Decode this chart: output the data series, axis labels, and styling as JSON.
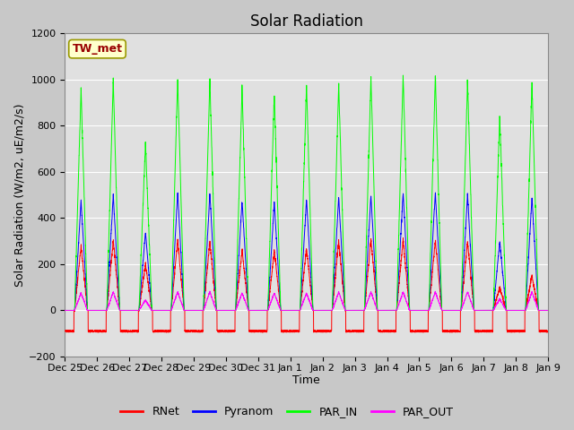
{
  "title": "Solar Radiation",
  "ylabel": "Solar Radiation (W/m2, uE/m2/s)",
  "xlabel": "Time",
  "ylim": [
    -200,
    1200
  ],
  "yticks": [
    -200,
    0,
    200,
    400,
    600,
    800,
    1000,
    1200
  ],
  "fig_bg_color": "#c8c8c8",
  "plot_bg_color": "#e0e0e0",
  "grid_color": "white",
  "station_label": "TW_met",
  "station_label_color": "#990000",
  "station_box_facecolor": "#ffffcc",
  "station_box_edgecolor": "#999900",
  "legend_labels": [
    "RNet",
    "Pyranom",
    "PAR_IN",
    "PAR_OUT"
  ],
  "line_colors": [
    "red",
    "blue",
    "lime",
    "magenta"
  ],
  "n_days": 15,
  "x_tick_labels": [
    "Dec 25",
    "Dec 26",
    "Dec 27",
    "Dec 28",
    "Dec 29",
    "Dec 30",
    "Dec 31",
    "Jan 1",
    "Jan 2",
    "Jan 3",
    "Jan 4",
    "Jan 5",
    "Jan 6",
    "Jan 7",
    "Jan 8",
    "Jan 9"
  ],
  "par_in_peaks": [
    960,
    1000,
    730,
    1010,
    1000,
    960,
    940,
    980,
    980,
    1010,
    1020,
    1020,
    1000,
    840,
    990
  ],
  "pyr_peaks": [
    475,
    500,
    340,
    510,
    505,
    475,
    470,
    480,
    490,
    500,
    510,
    510,
    505,
    300,
    490
  ],
  "rnet_peaks": [
    280,
    305,
    200,
    305,
    300,
    260,
    260,
    270,
    300,
    310,
    310,
    305,
    300,
    100,
    150
  ],
  "par_out_peaks": [
    75,
    80,
    45,
    80,
    80,
    75,
    75,
    75,
    80,
    80,
    80,
    80,
    80,
    50,
    80
  ],
  "rnet_night": -90,
  "title_fontsize": 12,
  "label_fontsize": 9,
  "tick_fontsize": 8
}
